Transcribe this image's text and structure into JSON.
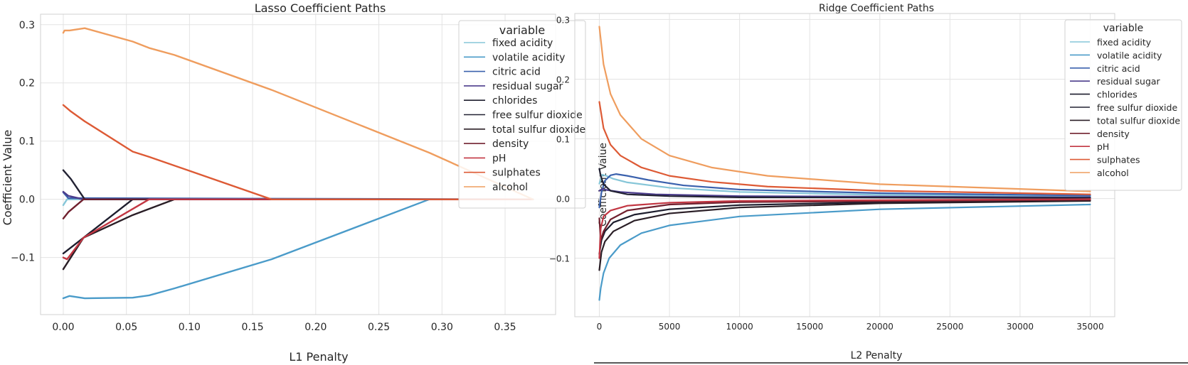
{
  "chart_data": [
    {
      "type": "line",
      "title": "Lasso Coefficient Paths",
      "xlabel": "L1 Penalty",
      "ylabel": "Coefficient Value",
      "xlim": [
        -0.018,
        0.39
      ],
      "ylim": [
        -0.198,
        0.318
      ],
      "xticks": [
        0.0,
        0.05,
        0.1,
        0.15,
        0.2,
        0.25,
        0.3,
        0.35
      ],
      "xtick_labels": [
        "0.00",
        "0.05",
        "0.10",
        "0.15",
        "0.20",
        "0.25",
        "0.30",
        "0.35"
      ],
      "yticks": [
        -0.1,
        0.0,
        0.1,
        0.2,
        0.3
      ],
      "ytick_labels": [
        "−0.1",
        "0.0",
        "0.1",
        "0.2",
        "0.3"
      ],
      "grid": true,
      "legend_title": "variable",
      "legend_position": "top-right",
      "series": [
        {
          "name": "fixed acidity",
          "color": "#86c6d8",
          "x": [
            0,
            0.003,
            0.016,
            0.372
          ],
          "y": [
            -0.01,
            0.0,
            0.0,
            0.0
          ]
        },
        {
          "name": "volatile acidity",
          "color": "#4a9bc9",
          "x": [
            0,
            0.005,
            0.017,
            0.055,
            0.068,
            0.088,
            0.165,
            0.29,
            0.372
          ],
          "y": [
            -0.17,
            -0.166,
            -0.17,
            -0.169,
            -0.165,
            -0.153,
            -0.103,
            0.0,
            0.0
          ]
        },
        {
          "name": "citric acid",
          "color": "#3a61ad",
          "x": [
            0,
            0.004,
            0.372
          ],
          "y": [
            0.012,
            0.002,
            0.0
          ]
        },
        {
          "name": "residual sugar",
          "color": "#4b3c8c",
          "x": [
            0,
            0.004,
            0.016,
            0.372
          ],
          "y": [
            0.013,
            0.006,
            0.0,
            0.0
          ]
        },
        {
          "name": "chlorides",
          "color": "#1d1d2d",
          "x": [
            0,
            0.016,
            0.055,
            0.372
          ],
          "y": [
            -0.093,
            -0.066,
            0.0,
            0.0
          ]
        },
        {
          "name": "free sulfur dioxide",
          "color": "#222233",
          "x": [
            0,
            0.006,
            0.017,
            0.372
          ],
          "y": [
            0.05,
            0.035,
            0.0,
            0.0
          ]
        },
        {
          "name": "total sulfur dioxide",
          "color": "#2a1e26",
          "x": [
            0,
            0.016,
            0.055,
            0.088,
            0.372
          ],
          "y": [
            -0.12,
            -0.066,
            -0.027,
            0.0,
            0.0
          ]
        },
        {
          "name": "density",
          "color": "#70202e",
          "x": [
            0,
            0.004,
            0.016,
            0.372
          ],
          "y": [
            -0.033,
            -0.022,
            0.0,
            0.0
          ]
        },
        {
          "name": "pH",
          "color": "#c23642",
          "x": [
            0,
            0.003,
            0.016,
            0.068,
            0.372
          ],
          "y": [
            -0.1,
            -0.103,
            -0.066,
            0.0,
            0.0
          ]
        },
        {
          "name": "sulphates",
          "color": "#dd5a35",
          "x": [
            0,
            0.006,
            0.017,
            0.055,
            0.068,
            0.165,
            0.372
          ],
          "y": [
            0.162,
            0.151,
            0.134,
            0.082,
            0.073,
            0.0,
            0.0
          ]
        },
        {
          "name": "alcohol",
          "color": "#ef9d5e",
          "x": [
            0,
            0.001,
            0.005,
            0.017,
            0.055,
            0.068,
            0.088,
            0.165,
            0.29,
            0.372
          ],
          "y": [
            0.286,
            0.29,
            0.29,
            0.294,
            0.271,
            0.26,
            0.248,
            0.188,
            0.08,
            0.0
          ]
        }
      ]
    },
    {
      "type": "line",
      "title": "Ridge Coefficient Paths",
      "xlabel": "L2 Penalty",
      "ylabel": "Coefficient Value",
      "xlim": [
        -1750,
        36750
      ],
      "ylim": [
        -0.198,
        0.31
      ],
      "xticks": [
        0,
        5000,
        10000,
        15000,
        20000,
        25000,
        30000,
        35000
      ],
      "xtick_labels": [
        "0",
        "5000",
        "10000",
        "15000",
        "20000",
        "25000",
        "30000",
        "35000"
      ],
      "yticks": [
        -0.1,
        0.0,
        0.1,
        0.2,
        0.3
      ],
      "ytick_labels": [
        "−0.1",
        "0.0",
        "0.1",
        "0.2",
        "0.3"
      ],
      "grid": true,
      "legend_title": "variable",
      "legend_position": "top-right",
      "series": [
        {
          "name": "fixed acidity",
          "color": "#86c6d8",
          "x": [
            0,
            200,
            500,
            1000,
            2000,
            5000,
            10000,
            20000,
            35000
          ],
          "y": [
            0.025,
            0.04,
            0.038,
            0.033,
            0.027,
            0.018,
            0.011,
            0.006,
            0.003
          ]
        },
        {
          "name": "volatile acidity",
          "color": "#4a9bc9",
          "x": [
            0,
            100,
            300,
            700,
            1500,
            3000,
            5000,
            10000,
            20000,
            35000
          ],
          "y": [
            -0.17,
            -0.15,
            -0.125,
            -0.1,
            -0.078,
            -0.058,
            -0.045,
            -0.03,
            -0.018,
            -0.01
          ]
        },
        {
          "name": "citric acid",
          "color": "#3a61ad",
          "x": [
            0,
            150,
            400,
            800,
            1200,
            2000,
            3500,
            6000,
            10000,
            20000,
            35000
          ],
          "y": [
            -0.015,
            0.01,
            0.03,
            0.039,
            0.041,
            0.038,
            0.031,
            0.022,
            0.015,
            0.009,
            0.005
          ]
        },
        {
          "name": "residual sugar",
          "color": "#4b3c8c",
          "x": [
            0,
            200,
            600,
            1500,
            4000,
            10000,
            35000
          ],
          "y": [
            0.013,
            0.016,
            0.014,
            0.011,
            0.007,
            0.004,
            0.002
          ]
        },
        {
          "name": "chlorides",
          "color": "#1d1d2d",
          "x": [
            0,
            150,
            400,
            1000,
            2500,
            5000,
            10000,
            20000,
            35000
          ],
          "y": [
            -0.093,
            -0.07,
            -0.055,
            -0.04,
            -0.027,
            -0.018,
            -0.011,
            -0.006,
            -0.003
          ]
        },
        {
          "name": "free sulfur dioxide",
          "color": "#222233",
          "x": [
            0,
            100,
            300,
            800,
            2000,
            5000,
            10000,
            35000
          ],
          "y": [
            0.05,
            0.038,
            0.024,
            0.013,
            0.007,
            0.004,
            0.002,
            0.001
          ]
        },
        {
          "name": "total sulfur dioxide",
          "color": "#2a1e26",
          "x": [
            0,
            150,
            400,
            1000,
            2500,
            5000,
            10000,
            20000,
            35000
          ],
          "y": [
            -0.12,
            -0.09,
            -0.072,
            -0.055,
            -0.037,
            -0.025,
            -0.015,
            -0.008,
            -0.004
          ]
        },
        {
          "name": "density",
          "color": "#70202e",
          "x": [
            0,
            100,
            300,
            800,
            2000,
            5000,
            10000,
            35000
          ],
          "y": [
            -0.033,
            -0.07,
            -0.055,
            -0.035,
            -0.02,
            -0.01,
            -0.006,
            -0.002
          ]
        },
        {
          "name": "pH",
          "color": "#c23642",
          "x": [
            0,
            100,
            300,
            800,
            2000,
            5000,
            10000,
            35000
          ],
          "y": [
            -0.1,
            -0.05,
            -0.03,
            -0.02,
            -0.012,
            -0.007,
            -0.004,
            -0.001
          ]
        },
        {
          "name": "sulphates",
          "color": "#dd5a35",
          "x": [
            0,
            300,
            800,
            1500,
            3000,
            5000,
            8000,
            12000,
            20000,
            35000
          ],
          "y": [
            0.162,
            0.118,
            0.09,
            0.072,
            0.052,
            0.038,
            0.028,
            0.02,
            0.013,
            0.007
          ]
        },
        {
          "name": "alcohol",
          "color": "#ef9d5e",
          "x": [
            0,
            300,
            800,
            1500,
            3000,
            5000,
            8000,
            12000,
            20000,
            35000
          ],
          "y": [
            0.288,
            0.225,
            0.175,
            0.14,
            0.1,
            0.072,
            0.052,
            0.038,
            0.024,
            0.012
          ]
        }
      ]
    }
  ]
}
